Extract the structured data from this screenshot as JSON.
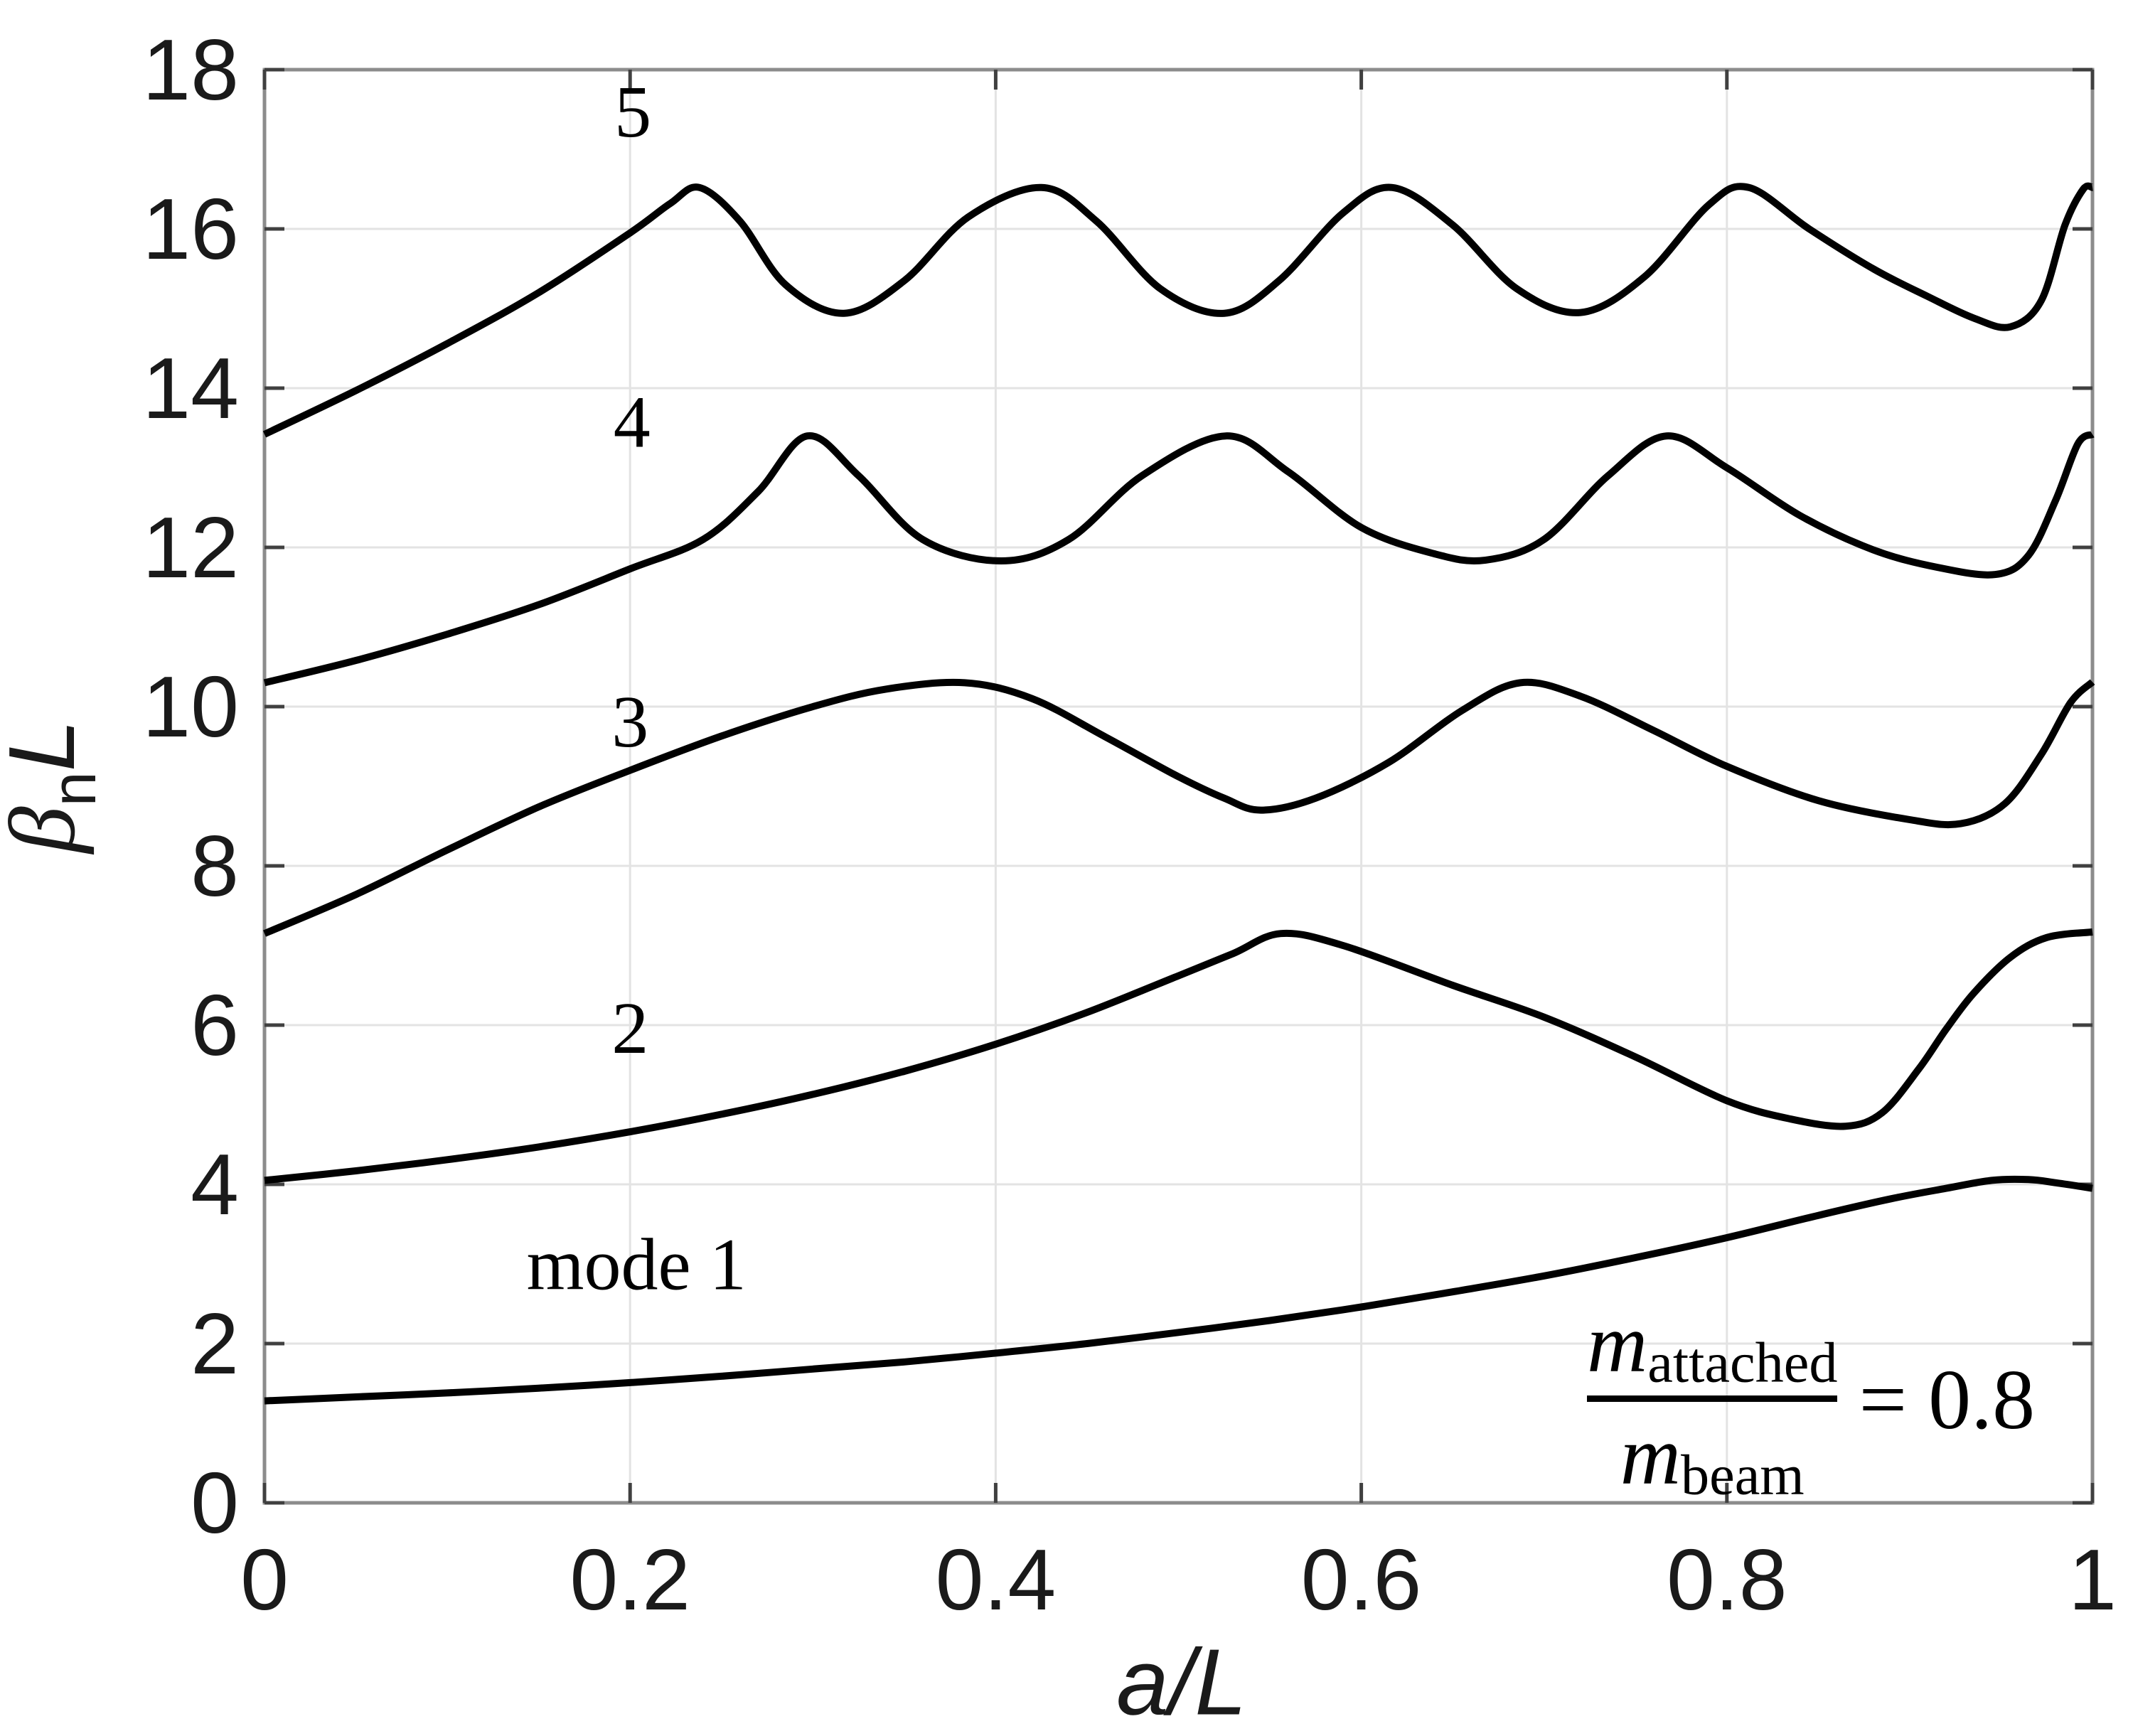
{
  "chart_data": {
    "type": "line",
    "title": "",
    "xlabel": "a/L",
    "ylabel": {
      "beta": "β",
      "sub": "n",
      "suffix": "L"
    },
    "xlim": [
      0,
      1
    ],
    "ylim": [
      0,
      18
    ],
    "xticks": [
      0,
      0.2,
      0.4,
      0.6,
      0.8,
      1
    ],
    "xtick_labels": [
      "0",
      "0.2",
      "0.4",
      "0.6",
      "0.8",
      "1"
    ],
    "yticks": [
      0,
      2,
      4,
      6,
      8,
      10,
      12,
      14,
      16,
      18
    ],
    "ytick_labels": [
      "0",
      "2",
      "4",
      "6",
      "8",
      "10",
      "12",
      "14",
      "16",
      "18"
    ],
    "grid": true,
    "legend_position": "none",
    "annotation": {
      "num_var": "m",
      "num_sub": "attached",
      "den_var": "m",
      "den_sub": "beam",
      "rhs": "= 0.8"
    },
    "series": [
      {
        "name": "mode-1",
        "label": "mode 1",
        "label_pos": {
          "a": 0.2035,
          "v": 2.99
        },
        "points": [
          [
            0,
            1.28
          ],
          [
            0.05,
            1.33
          ],
          [
            0.1,
            1.38
          ],
          [
            0.15,
            1.44
          ],
          [
            0.2,
            1.51
          ],
          [
            0.25,
            1.59
          ],
          [
            0.3,
            1.68
          ],
          [
            0.35,
            1.77
          ],
          [
            0.4,
            1.88
          ],
          [
            0.45,
            2.0
          ],
          [
            0.5,
            2.14
          ],
          [
            0.55,
            2.29
          ],
          [
            0.6,
            2.46
          ],
          [
            0.65,
            2.65
          ],
          [
            0.7,
            2.85
          ],
          [
            0.75,
            3.08
          ],
          [
            0.8,
            3.33
          ],
          [
            0.85,
            3.61
          ],
          [
            0.89,
            3.82
          ],
          [
            0.92,
            3.95
          ],
          [
            0.945,
            4.05
          ],
          [
            0.965,
            4.06
          ],
          [
            0.98,
            4.02
          ],
          [
            1,
            3.95
          ]
        ]
      },
      {
        "name": "mode-2",
        "label": "2",
        "label_pos": {
          "a": 0.2,
          "v": 5.96
        },
        "points": [
          [
            0,
            4.05
          ],
          [
            0.05,
            4.17
          ],
          [
            0.1,
            4.31
          ],
          [
            0.15,
            4.47
          ],
          [
            0.2,
            4.66
          ],
          [
            0.25,
            4.88
          ],
          [
            0.3,
            5.13
          ],
          [
            0.35,
            5.42
          ],
          [
            0.4,
            5.76
          ],
          [
            0.45,
            6.16
          ],
          [
            0.5,
            6.62
          ],
          [
            0.53,
            6.9
          ],
          [
            0.556,
            7.15
          ],
          [
            0.59,
            7.0
          ],
          [
            0.65,
            6.5
          ],
          [
            0.7,
            6.1
          ],
          [
            0.75,
            5.6
          ],
          [
            0.8,
            5.05
          ],
          [
            0.835,
            4.82
          ],
          [
            0.865,
            4.73
          ],
          [
            0.885,
            4.9
          ],
          [
            0.905,
            5.45
          ],
          [
            0.92,
            5.95
          ],
          [
            0.935,
            6.4
          ],
          [
            0.955,
            6.85
          ],
          [
            0.975,
            7.1
          ],
          [
            1,
            7.17
          ]
        ]
      },
      {
        "name": "mode-3",
        "label": "3",
        "label_pos": {
          "a": 0.2,
          "v": 9.81
        },
        "points": [
          [
            0,
            7.15
          ],
          [
            0.05,
            7.64
          ],
          [
            0.1,
            8.2
          ],
          [
            0.15,
            8.74
          ],
          [
            0.2,
            9.2
          ],
          [
            0.25,
            9.63
          ],
          [
            0.3,
            10.0
          ],
          [
            0.34,
            10.22
          ],
          [
            0.383,
            10.3
          ],
          [
            0.42,
            10.1
          ],
          [
            0.46,
            9.62
          ],
          [
            0.5,
            9.12
          ],
          [
            0.525,
            8.85
          ],
          [
            0.545,
            8.7
          ],
          [
            0.575,
            8.85
          ],
          [
            0.615,
            9.3
          ],
          [
            0.655,
            9.95
          ],
          [
            0.687,
            10.3
          ],
          [
            0.72,
            10.13
          ],
          [
            0.76,
            9.7
          ],
          [
            0.8,
            9.25
          ],
          [
            0.85,
            8.82
          ],
          [
            0.9,
            8.58
          ],
          [
            0.928,
            8.53
          ],
          [
            0.952,
            8.78
          ],
          [
            0.972,
            9.4
          ],
          [
            0.988,
            10.05
          ],
          [
            1,
            10.31
          ]
        ]
      },
      {
        "name": "mode-4",
        "label": "4",
        "label_pos": {
          "a": 0.201,
          "v": 13.57
        },
        "points": [
          [
            0,
            10.3
          ],
          [
            0.05,
            10.58
          ],
          [
            0.1,
            10.91
          ],
          [
            0.15,
            11.28
          ],
          [
            0.2,
            11.73
          ],
          [
            0.24,
            12.1
          ],
          [
            0.27,
            12.7
          ],
          [
            0.297,
            13.4
          ],
          [
            0.325,
            12.9
          ],
          [
            0.36,
            12.1
          ],
          [
            0.403,
            11.83
          ],
          [
            0.44,
            12.1
          ],
          [
            0.48,
            12.9
          ],
          [
            0.526,
            13.4
          ],
          [
            0.56,
            12.95
          ],
          [
            0.6,
            12.25
          ],
          [
            0.64,
            11.92
          ],
          [
            0.668,
            11.84
          ],
          [
            0.7,
            12.1
          ],
          [
            0.735,
            12.9
          ],
          [
            0.767,
            13.4
          ],
          [
            0.8,
            13.0
          ],
          [
            0.84,
            12.4
          ],
          [
            0.88,
            11.97
          ],
          [
            0.915,
            11.75
          ],
          [
            0.947,
            11.66
          ],
          [
            0.965,
            11.9
          ],
          [
            0.98,
            12.6
          ],
          [
            0.992,
            13.3
          ],
          [
            1,
            13.42
          ]
        ]
      },
      {
        "name": "mode-5",
        "label": "5",
        "label_pos": {
          "a": 0.2015,
          "v": 17.47
        },
        "points": [
          [
            0,
            13.42
          ],
          [
            0.05,
            13.97
          ],
          [
            0.1,
            14.56
          ],
          [
            0.15,
            15.2
          ],
          [
            0.2,
            15.95
          ],
          [
            0.222,
            16.32
          ],
          [
            0.238,
            16.52
          ],
          [
            0.26,
            16.1
          ],
          [
            0.285,
            15.3
          ],
          [
            0.317,
            14.94
          ],
          [
            0.35,
            15.35
          ],
          [
            0.385,
            16.15
          ],
          [
            0.425,
            16.52
          ],
          [
            0.455,
            16.1
          ],
          [
            0.49,
            15.25
          ],
          [
            0.525,
            14.94
          ],
          [
            0.555,
            15.35
          ],
          [
            0.59,
            16.2
          ],
          [
            0.617,
            16.52
          ],
          [
            0.65,
            16.05
          ],
          [
            0.685,
            15.25
          ],
          [
            0.72,
            14.95
          ],
          [
            0.755,
            15.4
          ],
          [
            0.79,
            16.3
          ],
          [
            0.812,
            16.52
          ],
          [
            0.845,
            16.0
          ],
          [
            0.88,
            15.5
          ],
          [
            0.91,
            15.15
          ],
          [
            0.935,
            14.88
          ],
          [
            0.955,
            14.77
          ],
          [
            0.972,
            15.1
          ],
          [
            0.985,
            16.05
          ],
          [
            0.995,
            16.5
          ],
          [
            1,
            16.52
          ]
        ]
      }
    ]
  },
  "colors": {
    "curve": "#000000",
    "axes_box": "#8c8c8c",
    "tick": "#404040",
    "grid": "#e3e3e3",
    "tick_label": "#1a1a1a",
    "series_label": "#000000",
    "background": "#ffffff"
  }
}
